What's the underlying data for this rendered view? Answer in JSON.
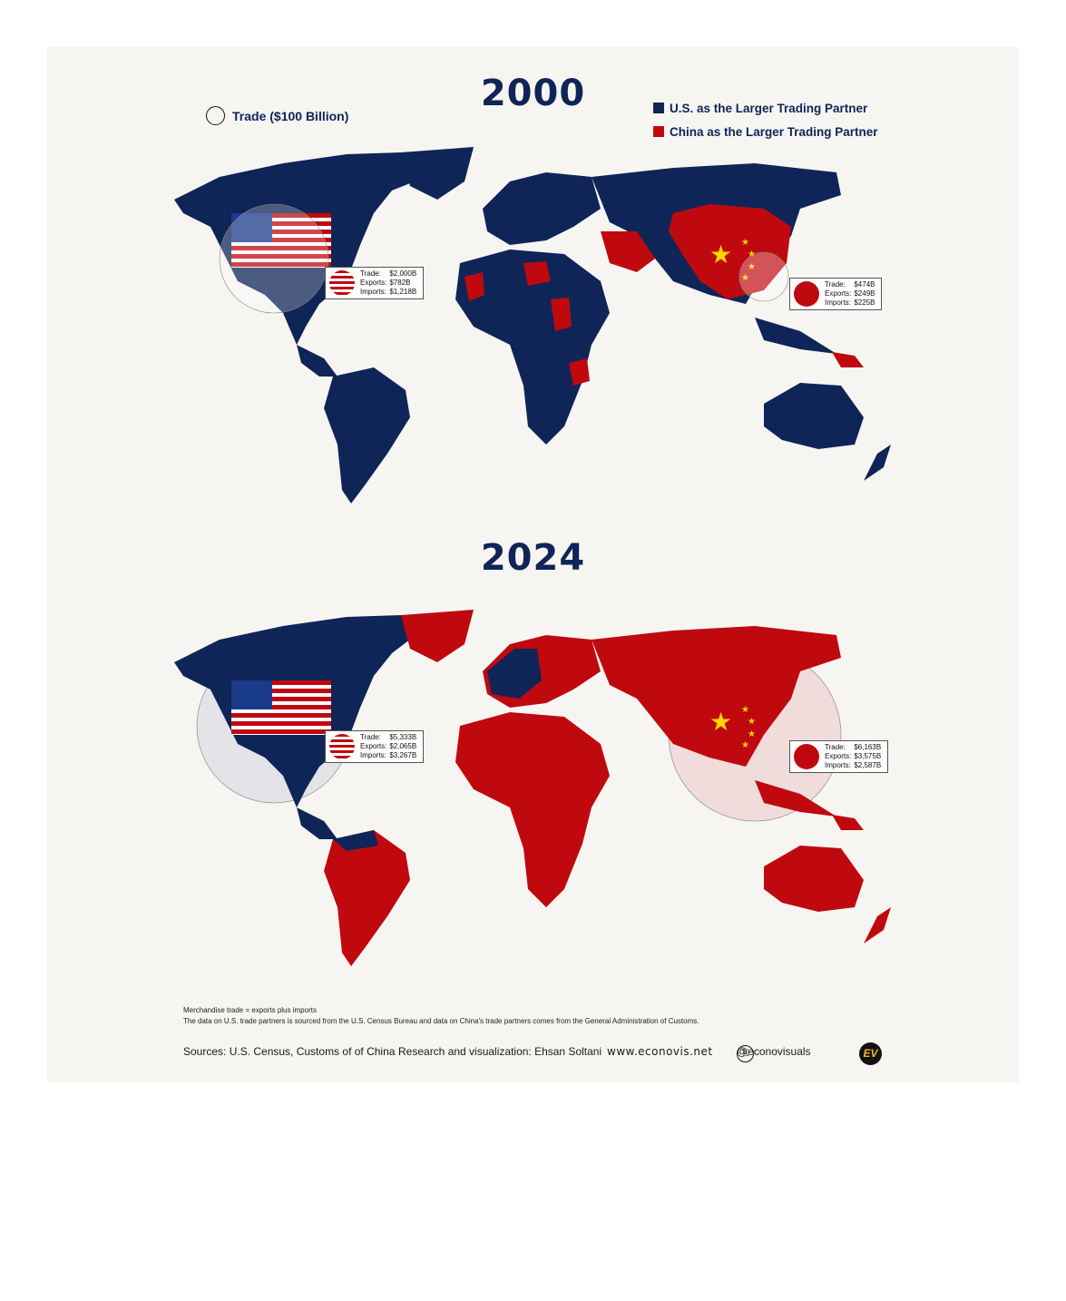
{
  "colors": {
    "us": "#0f2557",
    "china": "#c0090f",
    "background": "#f7f5f2"
  },
  "legend": {
    "size_label": "Trade ($100 Billion)",
    "us_label": "U.S. as the Larger Trading Partner",
    "china_label": "China as the Larger Trading Partner"
  },
  "maps": [
    {
      "year": "2000",
      "us": {
        "trade_label": "Trade:",
        "trade": "$2,000B",
        "exports_label": "Exports:",
        "exports": "$782B",
        "imports_label": "Imports:",
        "imports": "$1,218B"
      },
      "china": {
        "trade_label": "Trade:",
        "trade": "$474B",
        "exports_label": "Exports:",
        "exports": "$249B",
        "imports_label": "Imports:",
        "imports": "$225B"
      }
    },
    {
      "year": "2024",
      "us": {
        "trade_label": "Trade:",
        "trade": "$5,333B",
        "exports_label": "Exports:",
        "exports": "$2,065B",
        "imports_label": "Imports:",
        "imports": "$3,267B"
      },
      "china": {
        "trade_label": "Trade:",
        "trade": "$6,163B",
        "exports_label": "Exports:",
        "exports": "$3,575B",
        "imports_label": "Imports:",
        "imports": "$2,587B"
      }
    }
  ],
  "footer": {
    "note1": "Merchandise trade = exports plus imports",
    "note2": "The data on U.S. trade partners is sourced from the U.S. Census Bureau and data on China's trade partners comes from the General Administration of Customs.",
    "sources": "Sources: U.S. Census, Customs of of China",
    "credit": "Research and visualization: Ehsan Soltani",
    "website": "www.econovis.net",
    "handle": "@econovisuals",
    "logo_text": "EV"
  }
}
